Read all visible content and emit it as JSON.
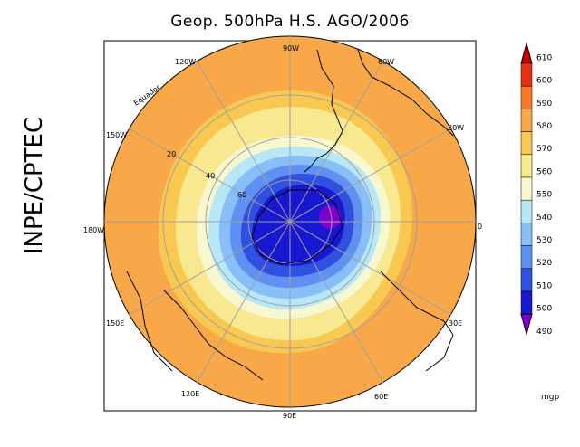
{
  "title": "Geop. 500hPa H.S. AGO/2006",
  "side_label": "INPE/CPTEC",
  "longitude_labels": {
    "top": "90W",
    "bottom": "90E",
    "left": "180W",
    "right": "0",
    "tl": "120W",
    "tl2": "150W",
    "tr": "60W",
    "tr2": "30W",
    "bl": "150E",
    "bl2": "120E",
    "br": "30E",
    "br2": "60E"
  },
  "latitude_labels": [
    "20",
    "40",
    "60"
  ],
  "equator_label": "Equador",
  "colorbar": {
    "unit": "mgp",
    "levels": [
      "610",
      "600",
      "590",
      "580",
      "570",
      "560",
      "550",
      "540",
      "530",
      "520",
      "510",
      "500",
      "490"
    ],
    "colors": [
      "#c80000",
      "#e83010",
      "#f87a28",
      "#f8a848",
      "#f8c850",
      "#f8e890",
      "#f8f8d0",
      "#b8e8f8",
      "#88bff8",
      "#6090f0",
      "#3050e0",
      "#1818d0",
      "#8000d0"
    ]
  }
}
